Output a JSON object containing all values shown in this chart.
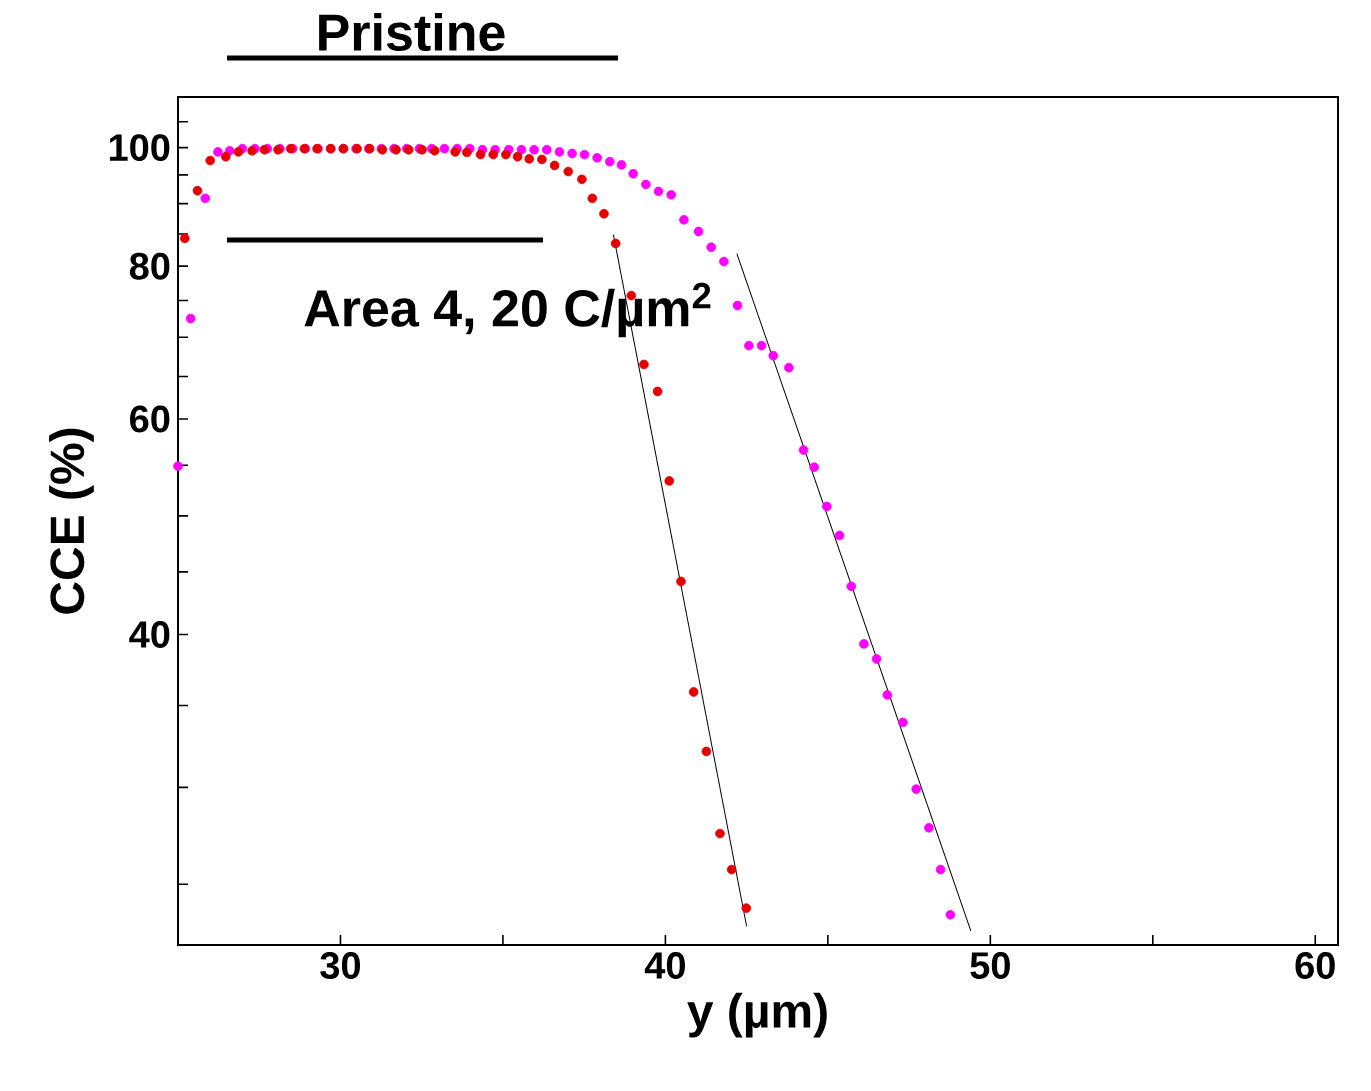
{
  "chart_data": {
    "type": "scatter",
    "xlabel": "y (µm)",
    "ylabel": "CCE (%)",
    "log": true,
    "marker": "circle",
    "grid": false,
    "annotations": [
      "Pristine",
      "Area 4, 20 C/µm$^{2}$"
    ],
    "xlim": [
      25,
      60.7
    ],
    "ylim": [
      22.3,
      110
    ],
    "xticks": [
      30,
      {
        "value": 35,
        "label": null
      },
      40,
      {
        "value": 45,
        "label": null
      },
      50,
      {
        "value": 55,
        "label": null
      },
      60
    ],
    "yticks": [
      {
        "value": 25,
        "label": null
      },
      {
        "value": 30,
        "label": null
      },
      {
        "value": 35,
        "label": null
      },
      40,
      {
        "value": 45,
        "label": null
      },
      {
        "value": 50,
        "label": null
      },
      {
        "value": 55,
        "label": null
      },
      60,
      {
        "value": 65,
        "label": null
      },
      {
        "value": 70,
        "label": null
      },
      {
        "value": 75,
        "label": null
      },
      80,
      {
        "value": 85,
        "label": null
      },
      {
        "value": 90,
        "label": null
      },
      {
        "value": 95,
        "label": null
      },
      100,
      {
        "value": 105,
        "label": null
      }
    ],
    "series": [
      {
        "color": "#e60000",
        "x": [
          25.21,
          25.6,
          25.99,
          26.47,
          26.86,
          27.28,
          27.66,
          28.08,
          28.47,
          28.89,
          29.28,
          29.7,
          30.09,
          30.51,
          30.9,
          31.29,
          31.71,
          32.1,
          32.51,
          32.9,
          33.53,
          33.89,
          34.31,
          34.7,
          35.09,
          35.45,
          35.81,
          36.2,
          36.59,
          37.01,
          37.43,
          37.75,
          38.11,
          38.47,
          38.95,
          39.34,
          39.76,
          40.12,
          40.48,
          40.87,
          41.26,
          41.68,
          42.04,
          42.49
        ],
        "values": [
          84.3,
          92.2,
          97.6,
          98.3,
          99.2,
          99.4,
          99.6,
          99.6,
          99.8,
          99.8,
          99.8,
          99.8,
          99.8,
          99.8,
          99.8,
          99.6,
          99.6,
          99.6,
          99.6,
          99.4,
          99.2,
          99.1,
          98.7,
          98.7,
          98.7,
          98.3,
          97.9,
          97.8,
          96.7,
          95.6,
          94.2,
          90.9,
          88.3,
          83.5,
          75.7,
          66.5,
          63.2,
          53.4,
          44.2,
          35.9,
          32.1,
          27.5,
          25.7,
          23.9
        ]
      },
      {
        "color": "#ff00ff",
        "x": [
          25.0,
          25.39,
          25.84,
          26.23,
          26.59,
          26.98,
          27.37,
          27.75,
          28.14,
          28.53,
          28.92,
          29.31,
          29.7,
          30.09,
          30.48,
          30.87,
          31.26,
          31.65,
          32.04,
          32.43,
          32.81,
          33.2,
          33.59,
          33.98,
          34.37,
          34.76,
          35.18,
          35.57,
          35.96,
          36.35,
          36.74,
          37.13,
          37.51,
          37.9,
          38.29,
          38.65,
          39.01,
          39.4,
          39.79,
          40.18,
          40.57,
          41.02,
          41.41,
          41.8,
          42.22,
          42.57,
          42.96,
          43.32,
          43.8,
          44.25,
          44.58,
          44.97,
          45.36,
          45.72,
          46.11,
          46.5,
          46.83,
          47.31,
          47.72,
          48.11,
          48.47,
          48.77
        ],
        "values": [
          54.9,
          72.5,
          90.9,
          99.2,
          99.4,
          99.8,
          99.8,
          99.8,
          99.8,
          99.8,
          99.8,
          99.8,
          99.8,
          99.8,
          99.8,
          99.8,
          99.8,
          99.8,
          99.8,
          99.8,
          99.8,
          99.8,
          99.8,
          99.8,
          99.6,
          99.6,
          99.6,
          99.6,
          99.6,
          99.6,
          99.2,
          98.9,
          98.7,
          98.1,
          97.4,
          96.8,
          95.2,
          93.3,
          92.1,
          91.5,
          87.3,
          85.4,
          82.9,
          80.7,
          74.3,
          68.9,
          68.9,
          67.6,
          66.1,
          56.6,
          54.8,
          50.9,
          48.2,
          43.8,
          39.3,
          38.2,
          35.7,
          33.9,
          29.9,
          27.8,
          25.7,
          23.6
        ]
      },
      {
        "type": "line",
        "marker": "none",
        "color": "#000000",
        "x": [
          38.4,
          42.5
        ],
        "values": [
          84.9,
          23.1
        ]
      },
      {
        "type": "line",
        "marker": "none",
        "color": "#000000",
        "x": [
          42.2,
          49.4
        ],
        "values": [
          81.9,
          22.9
        ]
      }
    ]
  }
}
